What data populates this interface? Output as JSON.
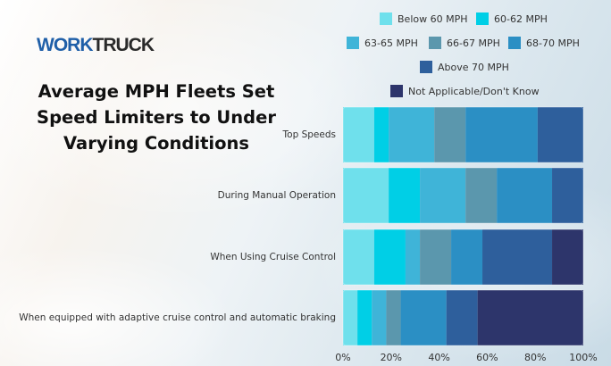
{
  "brand": {
    "part1": "WORK",
    "part2": "TRUCK"
  },
  "chart_data": {
    "type": "bar",
    "orientation": "horizontal",
    "stacked": true,
    "normalized": true,
    "title": "Average MPH Fleets Set Speed Limiters to Under Varying Conditions",
    "categories": [
      "Top Speeds",
      "During Manual Operation",
      "When Using Cruise Control",
      "When equipped with adaptive cruise control and automatic braking"
    ],
    "series": [
      {
        "name": "Below 60 MPH",
        "color": "#6fe0ec",
        "values": [
          13,
          19,
          13,
          6
        ]
      },
      {
        "name": "60-62 MPH",
        "color": "#00cfe6",
        "values": [
          6,
          13,
          13,
          6
        ]
      },
      {
        "name": "63-65 MPH",
        "color": "#3fb4d8",
        "values": [
          19,
          19,
          6,
          6
        ]
      },
      {
        "name": "66-67 MPH",
        "color": "#5b97ad",
        "values": [
          13,
          13,
          13,
          6
        ]
      },
      {
        "name": "68-70 MPH",
        "color": "#2b8fc4",
        "values": [
          30,
          23,
          13,
          19
        ]
      },
      {
        "name": "Above 70 MPH",
        "color": "#2e5f9c",
        "values": [
          19,
          13,
          29,
          13
        ]
      },
      {
        "name": "Not Applicable/Don't Know",
        "color": "#2d356b",
        "values": [
          0,
          0,
          13,
          44
        ]
      }
    ],
    "xaxis": {
      "ticks": [
        "0%",
        "20%",
        "40%",
        "60%",
        "80%",
        "100%"
      ],
      "range": [
        0,
        100
      ]
    },
    "legend_position": "top-right",
    "grid": false
  }
}
